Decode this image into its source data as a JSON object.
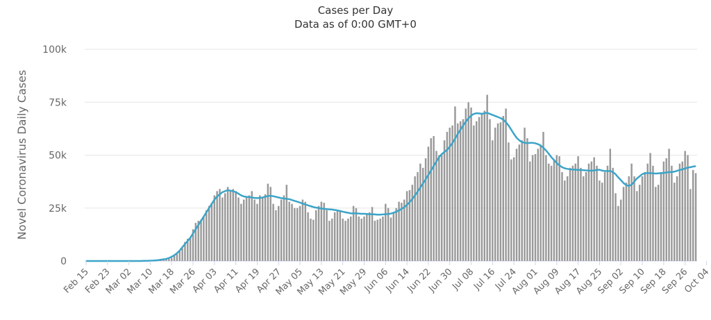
{
  "header": {
    "title": "Cases per Day",
    "subtitle": "Data as of 0:00 GMT+0"
  },
  "chart_data": {
    "type": "bar",
    "title": "Cases per Day",
    "subtitle": "Data as of 0:00 GMT+0",
    "ylabel": "Novel Coronavirus Daily Cases",
    "xlabel": "",
    "ylim": [
      0,
      100000
    ],
    "y_ticks": [
      0,
      25000,
      50000,
      75000,
      100000
    ],
    "y_tick_labels": [
      "0",
      "25k",
      "50k",
      "75k",
      "100k"
    ],
    "x_tick_labels": [
      "Feb 15",
      "Feb 23",
      "Mar 02",
      "Mar 10",
      "Mar 18",
      "Mar 26",
      "Apr 03",
      "Apr 11",
      "Apr 19",
      "Apr 27",
      "May 05",
      "May 13",
      "May 21",
      "May 29",
      "Jun 06",
      "Jun 14",
      "Jun 22",
      "Jun 30",
      "Jul 08",
      "Jul 16",
      "Jul 24",
      "Aug 01",
      "Aug 09",
      "Aug 17",
      "Aug 25",
      "Sep 02",
      "Sep 10",
      "Sep 18",
      "Sep 26",
      "Oct 04"
    ],
    "tick_interval_days": 8,
    "grid": true,
    "bar_color": "#999999",
    "line_color": "#3ba4c8",
    "daily_cases": [
      0,
      0,
      0,
      0,
      0,
      0,
      0,
      0,
      0,
      0,
      0,
      0,
      0,
      0,
      0,
      0,
      0,
      0,
      0,
      0,
      20,
      30,
      50,
      80,
      100,
      150,
      200,
      300,
      400,
      600,
      700,
      1000,
      1500,
      2500,
      3500,
      5000,
      6000,
      9000,
      10500,
      11000,
      15000,
      18000,
      19000,
      19500,
      21000,
      24000,
      26000,
      27500,
      31000,
      33000,
      34000,
      30000,
      32000,
      35000,
      33000,
      34000,
      33000,
      30000,
      27000,
      29000,
      30000,
      31000,
      33000,
      29000,
      27000,
      31000,
      30000,
      31500,
      36500,
      35000,
      27000,
      24000,
      26000,
      29000,
      31000,
      36000,
      28000,
      27000,
      25000,
      25000,
      26000,
      29000,
      28000,
      23000,
      20000,
      19500,
      24000,
      26000,
      28000,
      27500,
      24000,
      19000,
      20000,
      23000,
      24000,
      23500,
      20000,
      19000,
      20000,
      21000,
      26000,
      25000,
      21000,
      20000,
      21000,
      22000,
      23000,
      25500,
      19000,
      19500,
      20000,
      21000,
      27000,
      25000,
      20500,
      22500,
      25000,
      28000,
      27500,
      29000,
      33000,
      33500,
      36000,
      40000,
      42000,
      46000,
      44000,
      48500,
      54000,
      58000,
      59000,
      52000,
      50000,
      50500,
      57000,
      61000,
      63000,
      64000,
      73000,
      65000,
      66000,
      67000,
      72000,
      75000,
      72500,
      64000,
      66000,
      68000,
      70000,
      71000,
      78500,
      67000,
      57000,
      63000,
      65000,
      65500,
      68500,
      72000,
      56000,
      48000,
      49000,
      53000,
      55000,
      57000,
      63000,
      58000,
      47000,
      50000,
      50500,
      53000,
      55000,
      61000,
      50000,
      46000,
      45000,
      48000,
      50000,
      49500,
      42000,
      38000,
      40000,
      44000,
      45000,
      46000,
      49500,
      44000,
      40000,
      42000,
      46000,
      47000,
      49000,
      45000,
      38000,
      37000,
      42000,
      45000,
      53000,
      44000,
      32000,
      26000,
      29000,
      35000,
      37000,
      40000,
      46000,
      40000,
      33000,
      36000,
      40000,
      42000,
      46000,
      51000,
      45000,
      35000,
      36000,
      42000,
      47000,
      48500,
      53000,
      45000,
      37000,
      40000,
      46000,
      47000,
      52000,
      50000,
      34000,
      43000,
      41500
    ],
    "seven_day_average": [
      0,
      0,
      0,
      0,
      0,
      0,
      0,
      0,
      0,
      0,
      0,
      0,
      0,
      0,
      0,
      0,
      0,
      0,
      0,
      0,
      0,
      50,
      80,
      100,
      150,
      200,
      300,
      400,
      600,
      800,
      1000,
      1400,
      2000,
      2700,
      3700,
      4900,
      6500,
      8000,
      9500,
      11000,
      13000,
      15000,
      17000,
      19000,
      21000,
      23000,
      25000,
      27000,
      29000,
      30500,
      31500,
      32500,
      33000,
      33500,
      33200,
      33000,
      32500,
      31800,
      31000,
      30500,
      30300,
      30200,
      30000,
      29800,
      29700,
      29800,
      30000,
      30300,
      30700,
      30800,
      30600,
      30300,
      30000,
      29700,
      29500,
      29400,
      29200,
      28800,
      28400,
      28000,
      27600,
      27100,
      26700,
      26300,
      25900,
      25500,
      25200,
      25000,
      24800,
      24600,
      24500,
      24400,
      24300,
      24100,
      23900,
      23600,
      23300,
      23000,
      22800,
      22500,
      22500,
      22500,
      22400,
      22300,
      22300,
      22200,
      22100,
      22100,
      22000,
      21900,
      21900,
      22000,
      22100,
      22200,
      22400,
      22800,
      23300,
      23900,
      24600,
      25400,
      26500,
      27800,
      29300,
      31000,
      32800,
      34700,
      36600,
      38600,
      40700,
      42800,
      44900,
      47000,
      49000,
      50500,
      51500,
      52500,
      54000,
      55700,
      57800,
      60000,
      62000,
      64000,
      65800,
      67400,
      68700,
      69500,
      69800,
      69700,
      69500,
      69800,
      70000,
      69500,
      69000,
      68500,
      68000,
      67500,
      66800,
      65500,
      64000,
      62000,
      60000,
      58200,
      57000,
      56200,
      55800,
      55700,
      55800,
      55800,
      55600,
      55200,
      54500,
      53500,
      52200,
      50700,
      49000,
      47700,
      46200,
      45200,
      44300,
      43800,
      43500,
      43300,
      43200,
      43100,
      43000,
      43000,
      42900,
      42800,
      42700,
      42600,
      42800,
      43000,
      43100,
      42700,
      42500,
      42500,
      42500,
      42000,
      41000,
      39500,
      38200,
      36800,
      35800,
      35500,
      36000,
      37500,
      39000,
      40000,
      41000,
      41500,
      41500,
      41500,
      41400,
      41300,
      41400,
      41500,
      41600,
      41800,
      42000,
      42000,
      42200,
      42600,
      43000,
      43300,
      43700,
      44100,
      44300,
      44600,
      44800
    ]
  }
}
